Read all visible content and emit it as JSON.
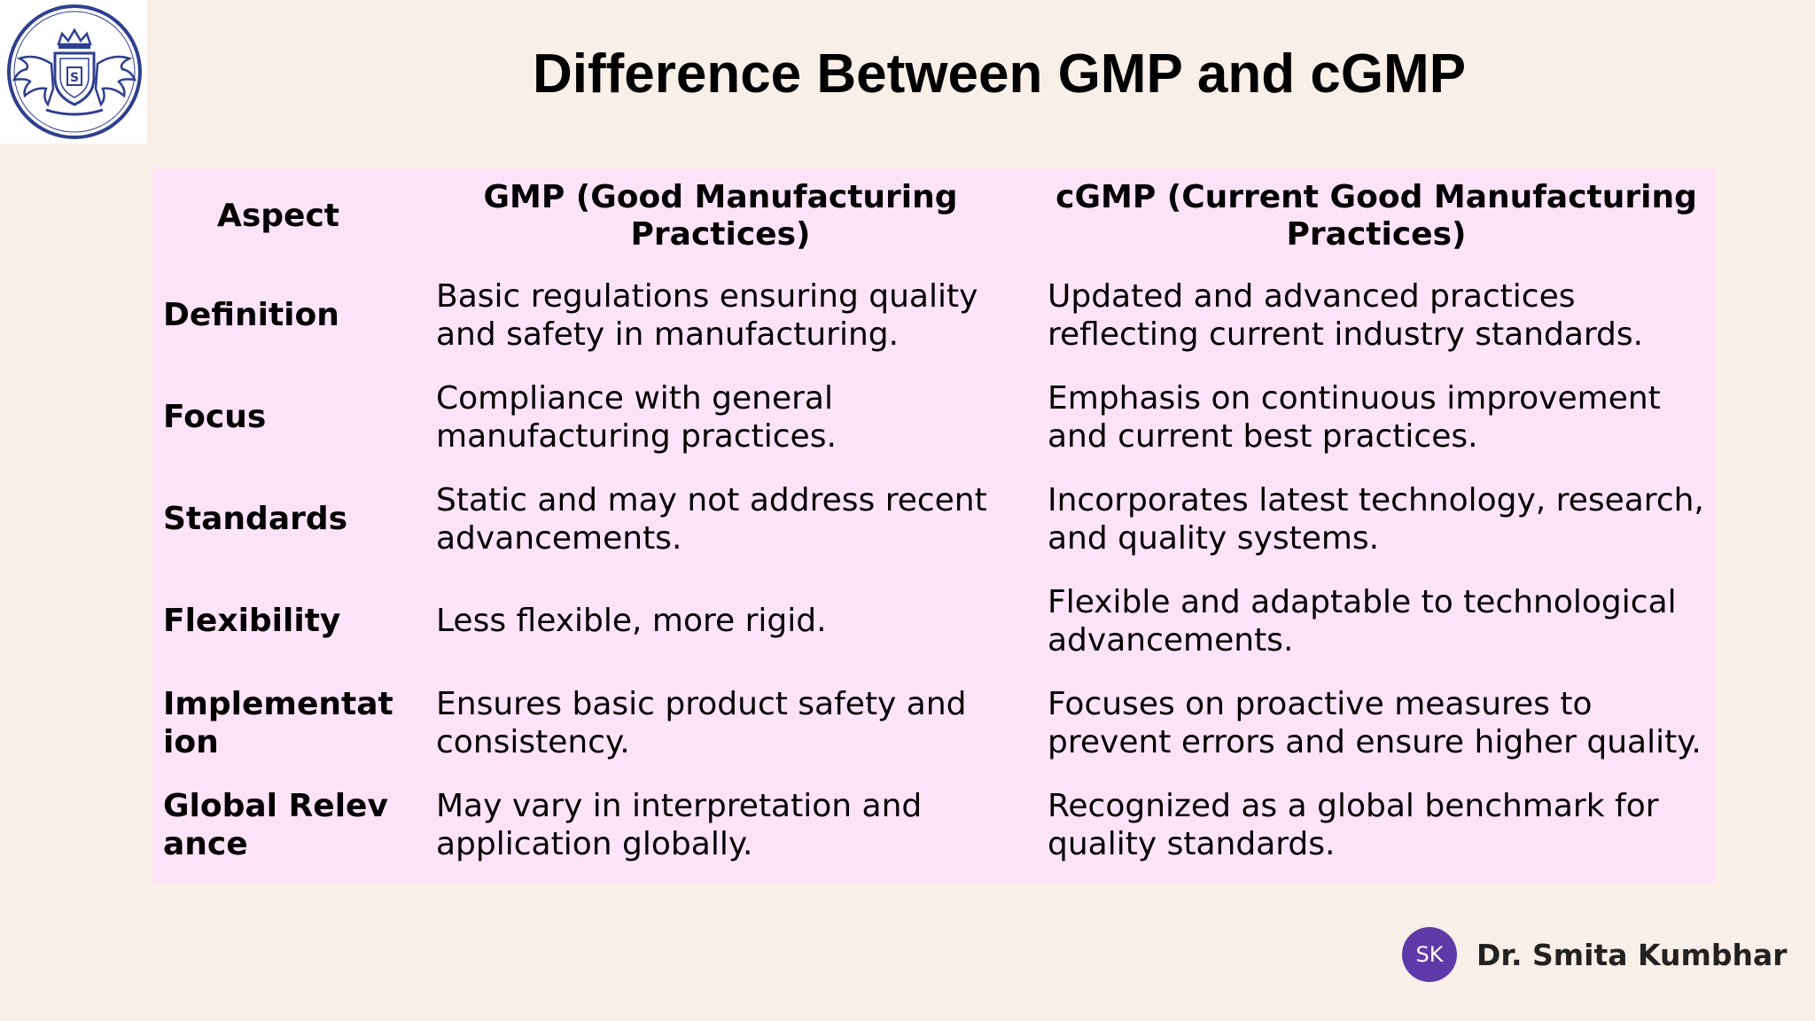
{
  "slide": {
    "title": "Difference Between GMP and cGMP",
    "logo_icon": "crest-shield-logo",
    "colors": {
      "background": "#f8f0e8",
      "table_background": "#fde3f8",
      "logo_blue": "#2e3f8f",
      "avatar": "#5e3aa8"
    }
  },
  "table": {
    "headers": [
      "Aspect",
      "GMP (Good Manufacturing Practices)",
      "cGMP (Current Good Manufacturing Practices)"
    ],
    "rows": [
      {
        "aspect": "Definition",
        "gmp": "Basic regulations ensuring quality and safety in manufacturing.",
        "cgmp": "Updated and advanced practices reflecting current industry standards."
      },
      {
        "aspect": "Focus",
        "gmp": "Compliance with general manufacturing practices.",
        "cgmp": "Emphasis on continuous improvement and current best practices."
      },
      {
        "aspect": "Standards",
        "gmp": "Static and may not address recent advancements.",
        "cgmp": "Incorporates latest technology, research, and quality systems."
      },
      {
        "aspect": "Flexibility",
        "gmp": "Less flexible, more rigid.",
        "cgmp": "Flexible and adaptable to technological advancements."
      },
      {
        "aspect": "Implementation",
        "gmp": "Ensures basic product safety and consistency.",
        "cgmp": "Focuses on proactive measures to prevent errors and ensure higher quality."
      },
      {
        "aspect": "Global Relevance",
        "gmp": "May vary in interpretation and application globally.",
        "cgmp": "Recognized as a global benchmark for quality standards."
      }
    ]
  },
  "author": {
    "initials": "SK",
    "name": "Dr. Smita Kumbhar"
  }
}
